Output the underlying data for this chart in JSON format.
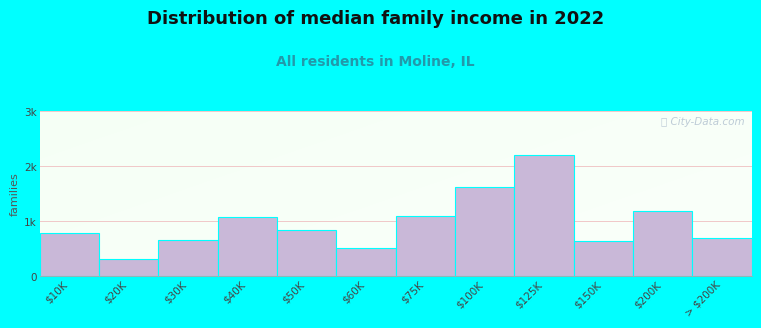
{
  "title": "Distribution of median family income in 2022",
  "subtitle": "All residents in Moline, IL",
  "categories": [
    "$10K",
    "$20K",
    "$30K",
    "$40K",
    "$50K",
    "$60K",
    "$75K",
    "$100K",
    "$125K",
    "$150K",
    "$200K",
    "> $200K"
  ],
  "values": [
    780,
    310,
    660,
    1080,
    850,
    520,
    1100,
    1620,
    2200,
    650,
    1180,
    700
  ],
  "bar_color": "#c9b8d8",
  "background_color": "#00ffff",
  "plot_bg_green": "#e8f8e8",
  "plot_bg_white": "#f8fff8",
  "grid_color": "#f0c8c8",
  "title_color": "#111111",
  "subtitle_color": "#2299aa",
  "ylabel": "families",
  "yticks": [
    0,
    1000,
    2000,
    3000
  ],
  "ytick_labels": [
    "0",
    "1k",
    "2k",
    "3k"
  ],
  "ylim": [
    0,
    3000
  ],
  "watermark": "Ⓢ City-Data.com",
  "title_fontsize": 13,
  "subtitle_fontsize": 10,
  "ylabel_fontsize": 8,
  "tick_fontsize": 7.5
}
